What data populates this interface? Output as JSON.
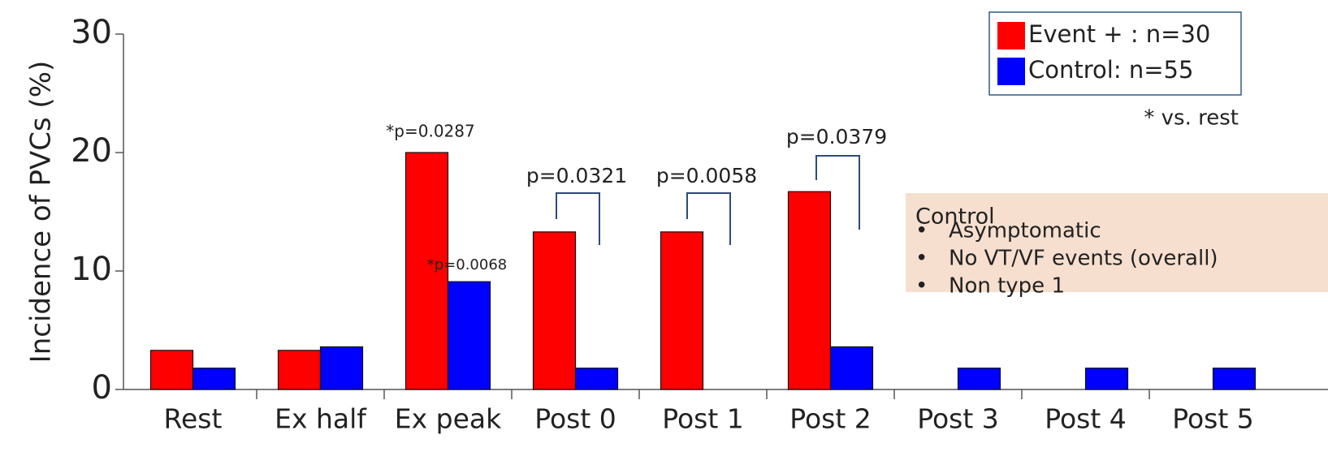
{
  "chart_data": {
    "type": "bar",
    "y_label": "Incidence of PVCs (%)",
    "categories": [
      "Rest",
      "Ex half",
      "Ex peak",
      "Post 0",
      "Post 1",
      "Post 2",
      "Post 3",
      "Post 4",
      "Post 5"
    ],
    "series": [
      {
        "name": "Event + : n=30",
        "color": "#ff0000",
        "values": [
          3.3,
          3.3,
          20,
          13.3,
          13.3,
          16.7,
          0,
          0,
          0
        ]
      },
      {
        "name": "Control:   n=55",
        "color": "#0000ff",
        "values": [
          1.8,
          3.6,
          9.1,
          1.8,
          0,
          3.6,
          1.8,
          1.8,
          1.8
        ]
      }
    ],
    "ylim": [
      0,
      30
    ],
    "yticks": [
      0,
      10,
      20,
      30
    ],
    "annotations": [
      "*p=0.0287",
      "*p=0.0068",
      "p=0.0321",
      "p=0.0058",
      "p=0.0379"
    ],
    "note": "* vs. rest",
    "info_box": {
      "title": "Control",
      "items": [
        "Asymptomatic",
        "No VT/VF events (overall)",
        "Non type 1"
      ]
    }
  }
}
